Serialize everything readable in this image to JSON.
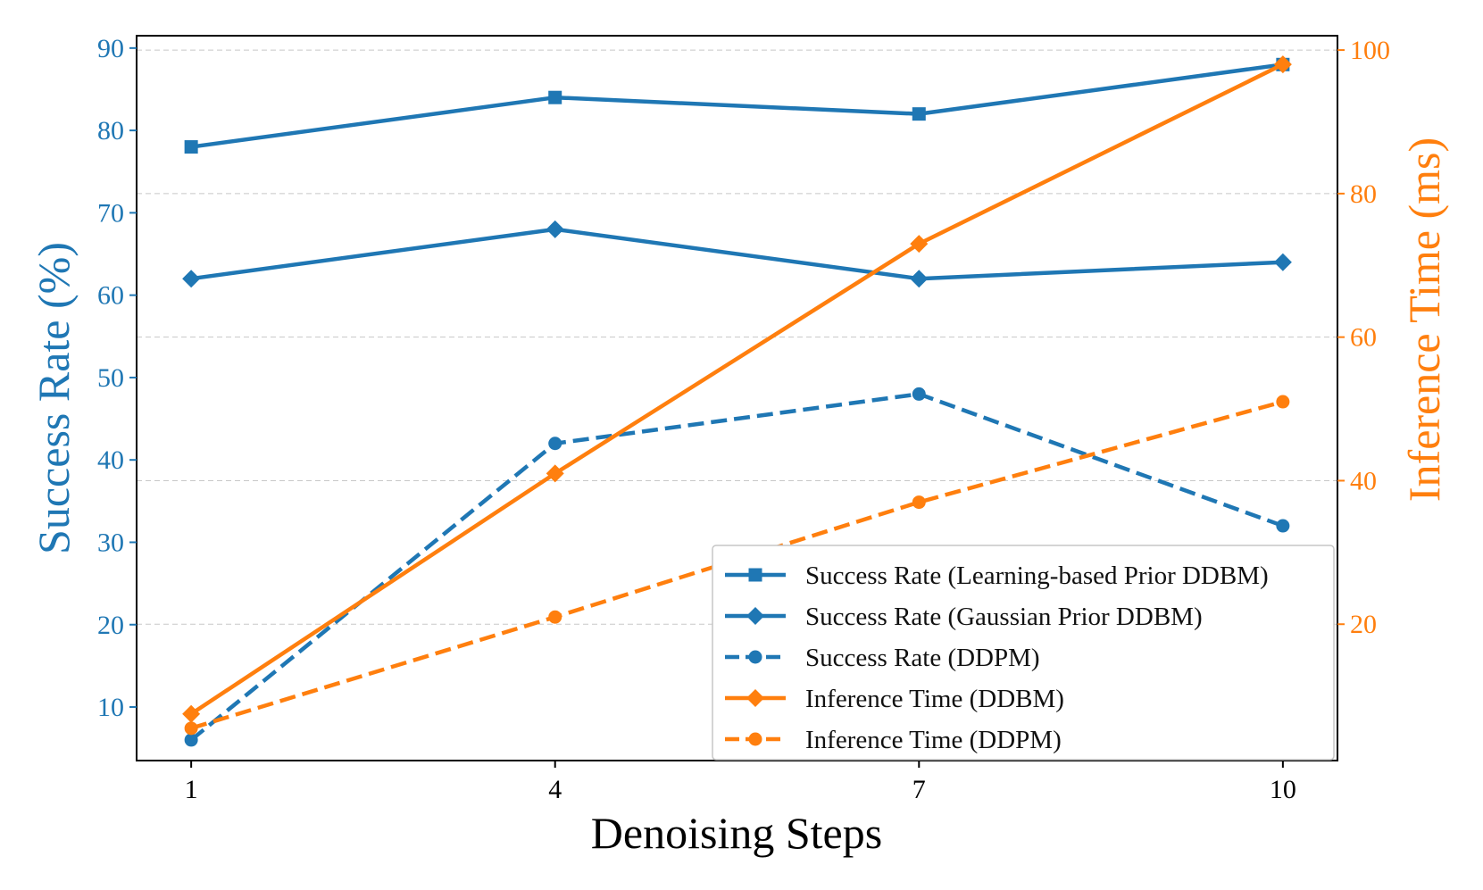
{
  "chart_data": {
    "type": "line",
    "title": "",
    "xlabel": "Denoising Steps",
    "ylabel": "Success Rate (%)",
    "y2label": "Inference Time (ms)",
    "x": [
      1,
      4,
      7,
      10
    ],
    "x_ticks": [
      "1",
      "4",
      "7",
      "10"
    ],
    "xlim": [
      0.55,
      10.45
    ],
    "ylim": [
      3.5,
      91.5
    ],
    "y_ticks": [
      "10",
      "20",
      "30",
      "40",
      "50",
      "60",
      "70",
      "80",
      "90"
    ],
    "y2lim": [
      1,
      102
    ],
    "y2_ticks": [
      "20",
      "40",
      "60",
      "80",
      "100"
    ],
    "grid": true,
    "legend_position": "lower-right",
    "colors": {
      "blue": "#1f77b4",
      "orange": "#ff7f0e"
    },
    "series": [
      {
        "name": "Success Rate (Learning-based Prior DDBM)",
        "axis": "left",
        "color": "#1f77b4",
        "line_style": "solid",
        "marker": "square",
        "values": [
          78,
          84,
          82,
          88
        ]
      },
      {
        "name": "Success Rate (Gaussian Prior DDBM)",
        "axis": "left",
        "color": "#1f77b4",
        "line_style": "solid",
        "marker": "diamond",
        "values": [
          62,
          68,
          62,
          64
        ]
      },
      {
        "name": "Success Rate (DDPM)",
        "axis": "left",
        "color": "#1f77b4",
        "line_style": "dashed",
        "marker": "circle",
        "values": [
          6,
          42,
          48,
          32
        ]
      },
      {
        "name": "Inference Time (DDBM)",
        "axis": "right",
        "color": "#ff7f0e",
        "line_style": "solid",
        "marker": "diamond",
        "values": [
          7.5,
          41,
          73,
          98
        ]
      },
      {
        "name": "Inference Time (DDPM)",
        "axis": "right",
        "color": "#ff7f0e",
        "line_style": "dashed",
        "marker": "circle",
        "values": [
          5.5,
          21,
          37,
          51
        ]
      }
    ]
  }
}
